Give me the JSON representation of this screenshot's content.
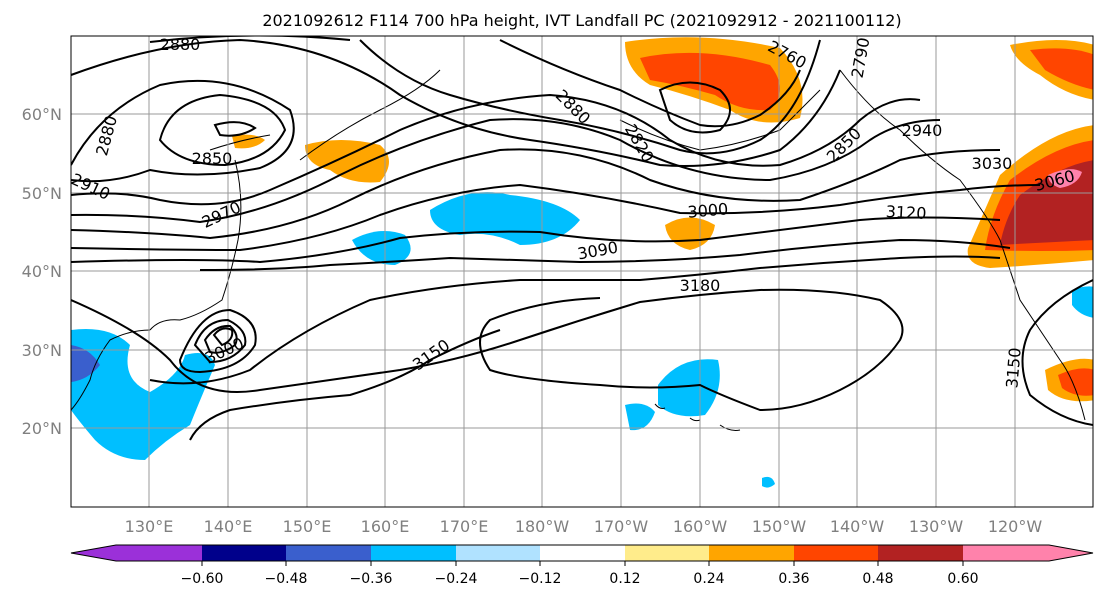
{
  "title": "2021092612 F114 700 hPa height, IVT Landfall PC (2021092912 - 2021100112)",
  "lat_labels": [
    "60°N",
    "50°N",
    "40°N",
    "30°N",
    "20°N"
  ],
  "lon_labels": [
    "130°E",
    "140°E",
    "150°E",
    "160°E",
    "170°E",
    "180°W",
    "170°W",
    "160°W",
    "150°W",
    "140°W",
    "130°W",
    "120°W"
  ],
  "colorbar": {
    "colors": [
      "#9b30d9",
      "#00008b",
      "#3a5fcd",
      "#00bfff",
      "#b0e2ff",
      "#ffffff",
      "#ffec8b",
      "#ffa500",
      "#ff4500",
      "#b22222",
      "#ff82ab"
    ],
    "ticks": [
      "−0.60",
      "−0.48",
      "−0.36",
      "−0.24",
      "−0.12",
      "0.12",
      "0.24",
      "0.36",
      "0.48",
      "0.60"
    ]
  },
  "contour_labels": [
    "2880",
    "2760",
    "2790",
    "2880",
    "2820",
    "2850",
    "2880",
    "2850",
    "2910",
    "2970",
    "3000",
    "3120",
    "3090",
    "3180",
    "3030",
    "3060",
    "3000",
    "3150",
    "3150",
    "2940"
  ]
}
